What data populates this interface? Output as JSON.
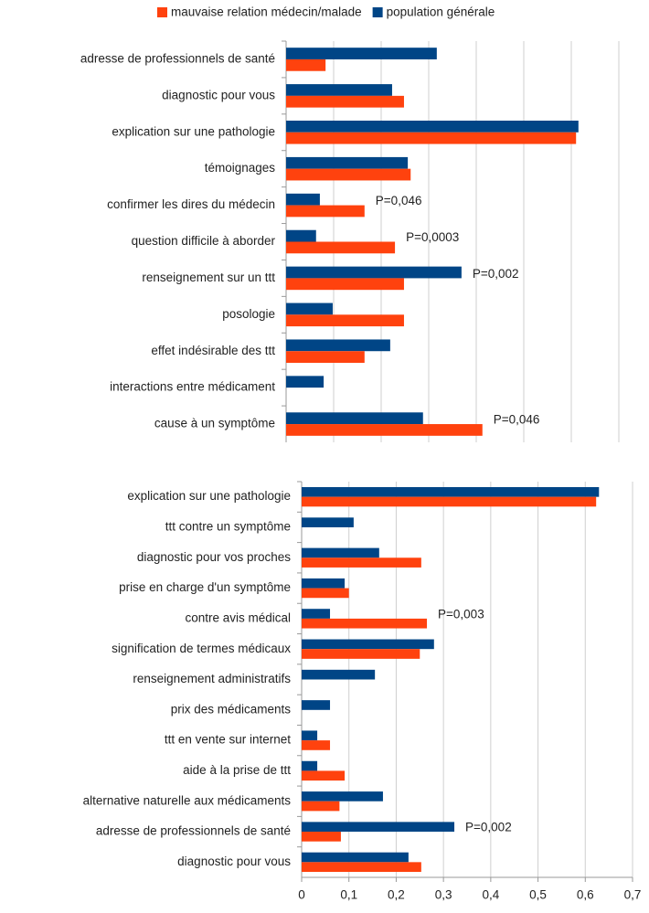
{
  "chart_data": [
    {
      "type": "bar",
      "orientation": "horizontal",
      "categories": [
        "adresse de professionnels de santé",
        "diagnostic pour vous",
        "explication sur une pathologie",
        "témoignages",
        "confirmer les dires du médecin",
        "question difficile à aborder",
        "renseignement sur un ttt",
        "posologie",
        "effet indésirable des ttt",
        "interactions entre médicament",
        "cause à un symptôme"
      ],
      "series": [
        {
          "name": "population générale",
          "color": "#004586",
          "values": [
            0.317,
            0.223,
            0.615,
            0.256,
            0.071,
            0.063,
            0.369,
            0.098,
            0.219,
            0.079,
            0.288
          ]
        },
        {
          "name": "mauvaise relation médecin/malade",
          "color": "#ff420e",
          "values": [
            0.083,
            0.248,
            0.61,
            0.262,
            0.165,
            0.229,
            0.248,
            0.248,
            0.165,
            0,
            0.413
          ]
        }
      ],
      "annotations": [
        {
          "category": 4,
          "text": "P=0,046"
        },
        {
          "category": 5,
          "text": "P=0,0003"
        },
        {
          "category": 6,
          "text": "P=0,002"
        },
        {
          "category": 10,
          "text": "P=0,046"
        }
      ],
      "xlim": [
        0,
        0.7
      ],
      "xticks": [
        0,
        0.1,
        0.2,
        0.3,
        0.4,
        0.5,
        0.6,
        0.7
      ],
      "grid": true
    },
    {
      "type": "bar",
      "orientation": "horizontal",
      "categories": [
        "explication sur une pathologie",
        "ttt contre un symptôme",
        "diagnostic pour vos proches",
        "prise en charge d'un symptôme",
        "contre avis médical",
        "signification de termes médicaux",
        "renseignement administratifs",
        "prix des médicaments",
        "ttt en vente sur internet",
        "aide à la prise de ttt",
        "alternative naturelle aux médicaments",
        "adresse de professionnels de santé",
        "diagnostic pour vous"
      ],
      "series": [
        {
          "name": "population générale",
          "color": "#004586",
          "values": [
            0.629,
            0.11,
            0.164,
            0.091,
            0.06,
            0.28,
            0.155,
            0.06,
            0.033,
            0.033,
            0.172,
            0.323,
            0.226
          ]
        },
        {
          "name": "mauvaise relation médecin/malade",
          "color": "#ff420e",
          "values": [
            0.623,
            0,
            0.253,
            0.1,
            0.265,
            0.25,
            0,
            0,
            0.06,
            0.091,
            0.08,
            0.083,
            0.253
          ]
        }
      ],
      "annotations": [
        {
          "category": 4,
          "text": "P=0,003"
        },
        {
          "category": 11,
          "text": "P=0,002"
        }
      ],
      "xlim": [
        0,
        0.7
      ],
      "xticks": [
        0,
        {
          "value": 0.1,
          "label": "0,1"
        },
        {
          "value": 0.2,
          "label": "0,2"
        },
        {
          "value": 0.3,
          "label": "0,3"
        },
        {
          "value": 0.4,
          "label": "0,4"
        },
        {
          "value": 0.5,
          "label": "0,5"
        },
        {
          "value": 0.6,
          "label": "0,6"
        },
        {
          "value": 0.7,
          "label": "0,7"
        }
      ],
      "grid": true
    }
  ]
}
